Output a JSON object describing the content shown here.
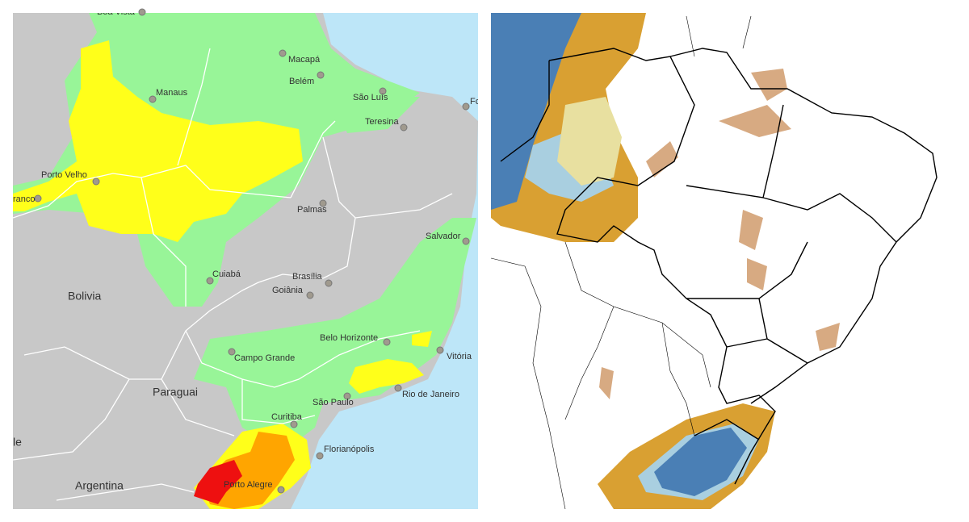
{
  "left_map": {
    "cities": [
      "Boa Vista",
      "Macapá",
      "Belém",
      "Manaus",
      "São Luís",
      "Fo",
      "Teresina",
      "Porto Velho",
      "ranco",
      "Palmas",
      "Salvador",
      "Cuiabá",
      "Brasília",
      "Goiânia",
      "Belo Horizonte",
      "Vitória",
      "Campo Grande",
      "São Paulo",
      "Rio de Janeiro",
      "Curitiba",
      "Florianópolis",
      "Porto Alegre"
    ],
    "countries": [
      "Bolivia",
      "Paraguai",
      "Argentina",
      "le"
    ]
  }
}
